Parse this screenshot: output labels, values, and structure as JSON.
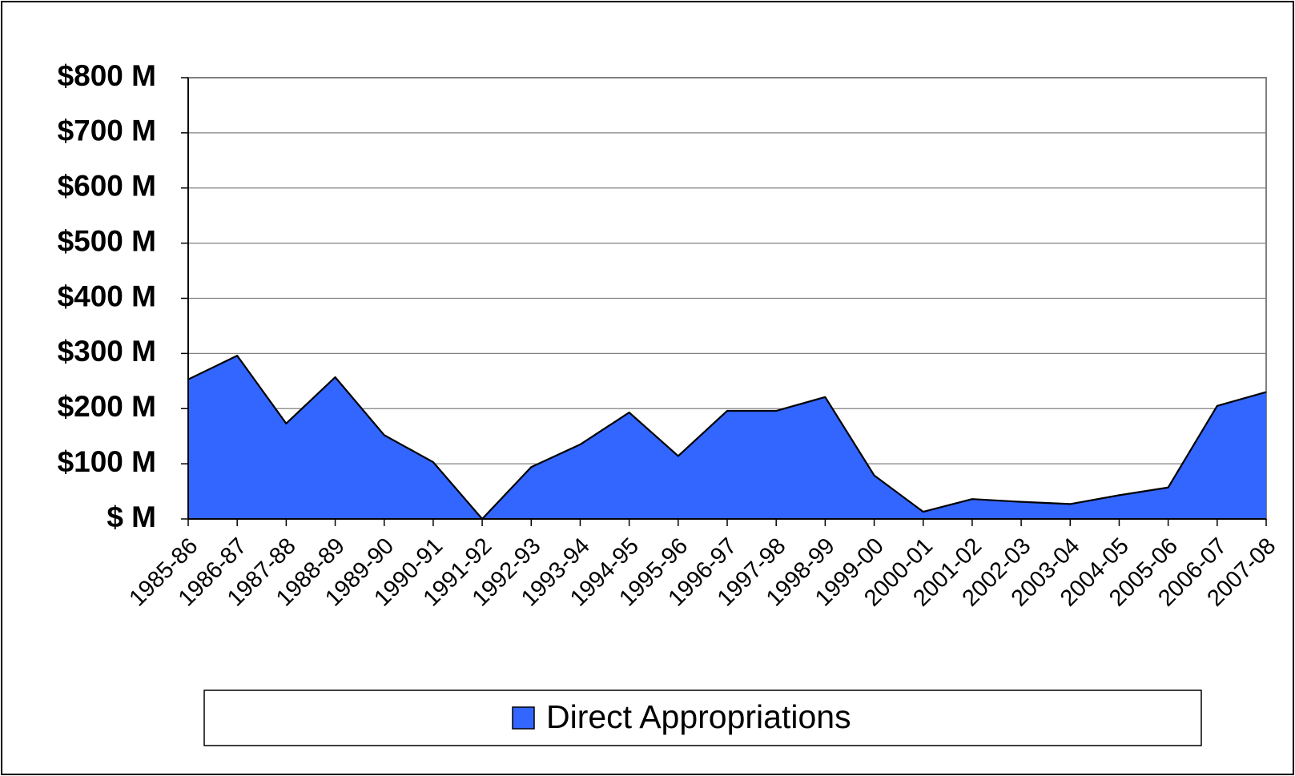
{
  "chart_data": {
    "type": "area",
    "categories": [
      "1985-86",
      "1986-87",
      "1987-88",
      "1988-89",
      "1989-90",
      "1990-91",
      "1991-92",
      "1992-93",
      "1993-94",
      "1994-95",
      "1995-96",
      "1996-97",
      "1997-98",
      "1998-99",
      "1999-00",
      "2000-01",
      "2001-02",
      "2002-03",
      "2003-04",
      "2004-05",
      "2005-06",
      "2006-07",
      "2007-08"
    ],
    "series": [
      {
        "name": "Direct Appropriations",
        "color": "#3366ff",
        "values": [
          253,
          296,
          173,
          257,
          152,
          103,
          0,
          94,
          135,
          193,
          114,
          196,
          196,
          221,
          79,
          13,
          36,
          31,
          27,
          43,
          57,
          205,
          230
        ]
      }
    ],
    "ylim": [
      0,
      800
    ],
    "yticks": [
      {
        "value": 0,
        "label": "$ M"
      },
      {
        "value": 100,
        "label": "$100 M"
      },
      {
        "value": 200,
        "label": "$200 M"
      },
      {
        "value": 300,
        "label": "$300 M"
      },
      {
        "value": 400,
        "label": "$400 M"
      },
      {
        "value": 500,
        "label": "$500 M"
      },
      {
        "value": 600,
        "label": "$600 M"
      },
      {
        "value": 700,
        "label": "$700 M"
      },
      {
        "value": 800,
        "label": "$800 M"
      }
    ],
    "grid": true,
    "legend": "bottom"
  }
}
